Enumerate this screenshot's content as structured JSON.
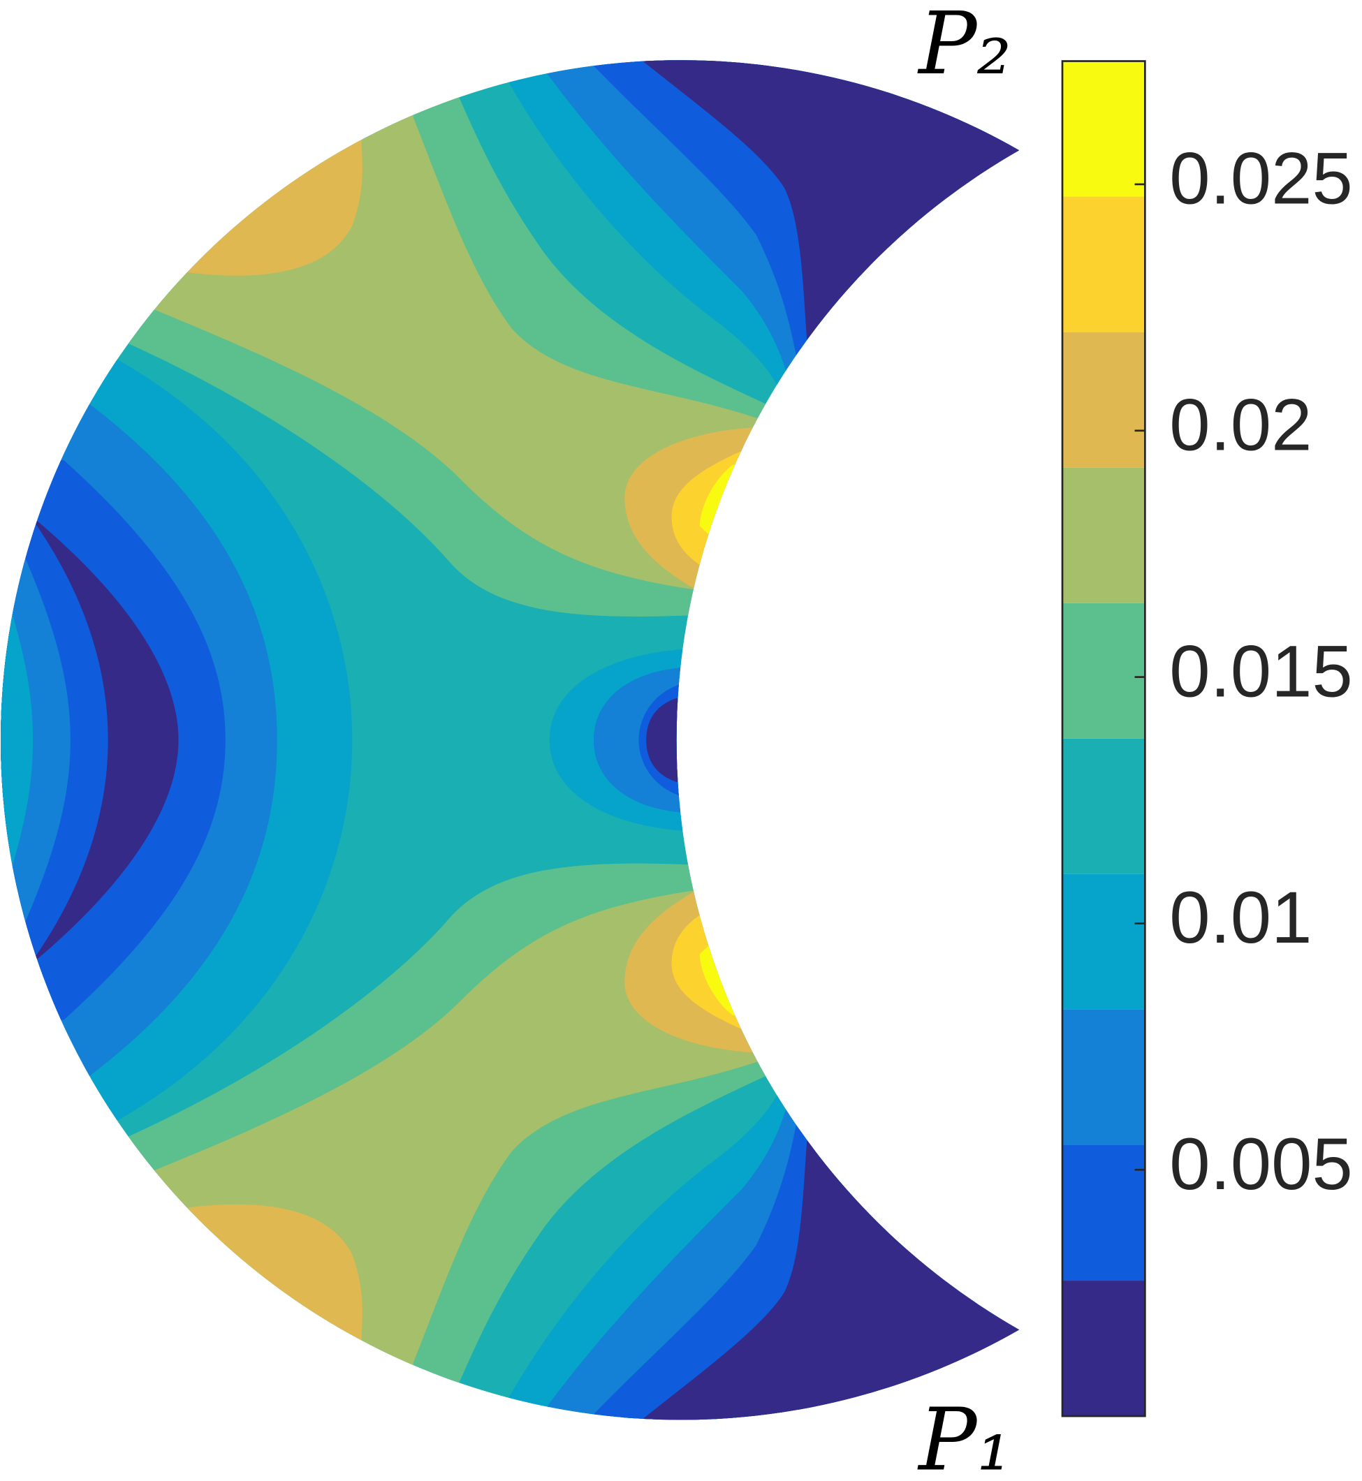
{
  "chart_data": {
    "type": "contourf",
    "levels": [
      0,
      0.00275,
      0.0055,
      0.00825,
      0.011,
      0.01375,
      0.0165,
      0.01925,
      0.022,
      0.02475,
      0.0275
    ],
    "colors": [
      "#352a87",
      "#0f5cdd",
      "#1481d6",
      "#06a4ca",
      "#19afb3",
      "#5bbf8e",
      "#a6bf6b",
      "#e0b852",
      "#fbd22e",
      "#f8fa0f"
    ],
    "ylim": [
      0,
      0.0275
    ],
    "yticks": [
      0.005,
      0.01,
      0.015,
      0.02,
      0.025
    ],
    "annotations": [
      "P₂",
      "P₁"
    ]
  }
}
